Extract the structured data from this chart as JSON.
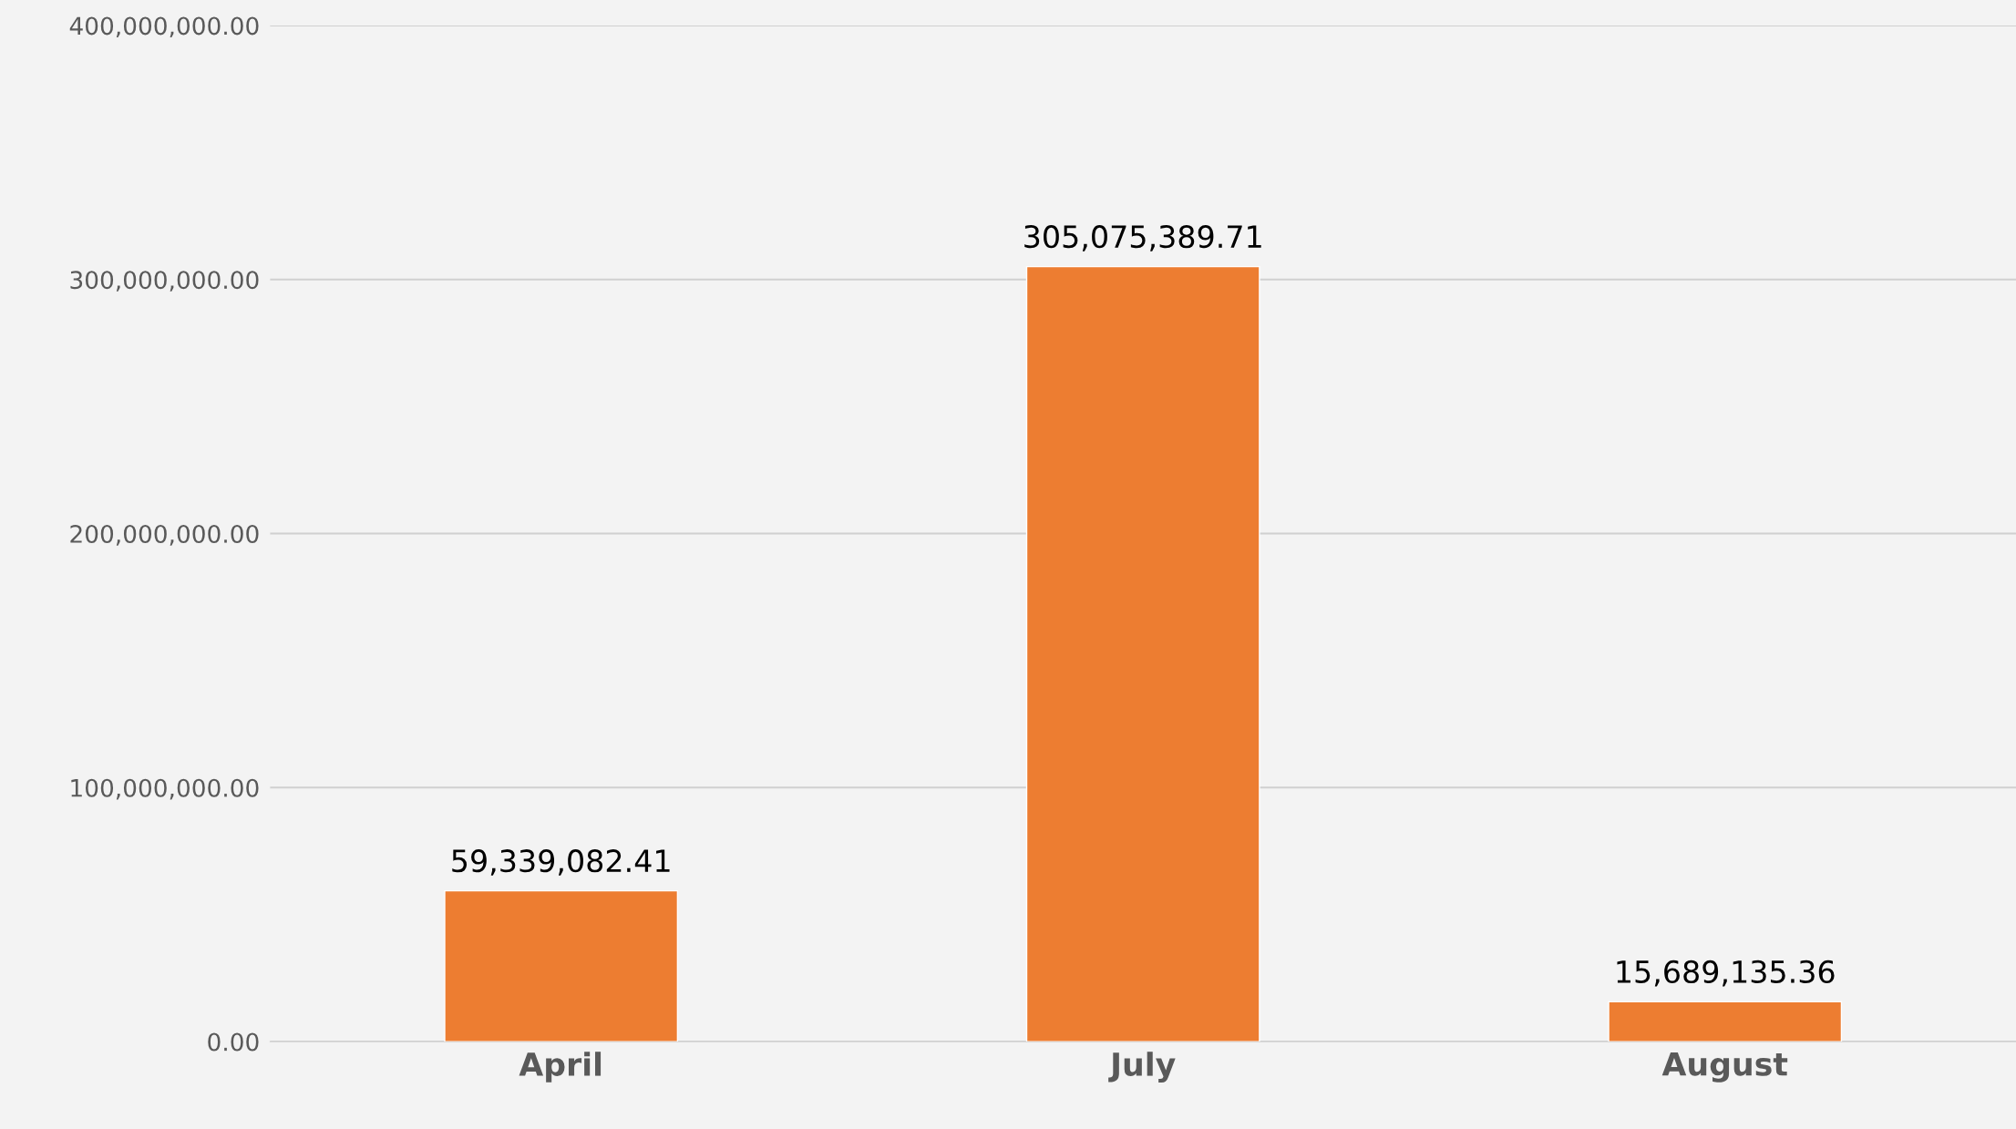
{
  "chart_data": {
    "type": "bar",
    "categories": [
      "April",
      "July",
      "August"
    ],
    "series": [
      {
        "color": "#ed7d31",
        "values": [
          59339082.41,
          305075389.71,
          15689135.36
        ],
        "value_labels": [
          "59,339,082.41",
          "305,075,389.71",
          "15,689,135.36"
        ]
      }
    ],
    "ylim": [
      0,
      400000000
    ],
    "yticks": [
      {
        "value": 0,
        "label": "0.00"
      },
      {
        "value": 100000000,
        "label": "100,000,000.00"
      },
      {
        "value": 200000000,
        "label": "200,000,000.00"
      },
      {
        "value": 300000000,
        "label": "300,000,000.00"
      },
      {
        "value": 400000000,
        "label": "400,000,000.00"
      }
    ],
    "grid": "y",
    "legend": false
  }
}
